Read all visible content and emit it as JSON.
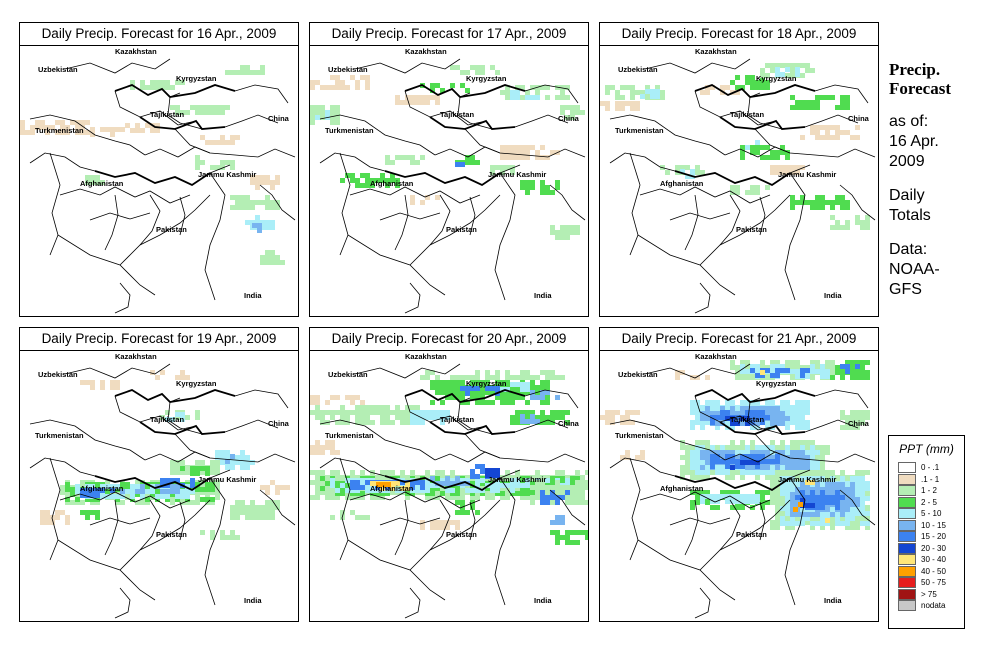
{
  "panels": [
    {
      "title": "Daily Precip. Forecast for  16 Apr., 2009",
      "day": 16
    },
    {
      "title": "Daily Precip. Forecast for  17 Apr., 2009",
      "day": 17
    },
    {
      "title": "Daily Precip. Forecast for  18 Apr., 2009",
      "day": 18
    },
    {
      "title": "Daily Precip. Forecast for  19 Apr., 2009",
      "day": 19
    },
    {
      "title": "Daily Precip. Forecast for  20 Apr., 2009",
      "day": 20
    },
    {
      "title": "Daily Precip. Forecast for  21 Apr., 2009",
      "day": 21
    }
  ],
  "map_labels": {
    "kazakhstan": "Kazakhstan",
    "uzbekistan": "Uzbekistan",
    "kyrgyzstan": "Kyrgyzstan",
    "tajikistan": "Tajikistan",
    "china": "China",
    "turkmenistan": "Turkmenistan",
    "jammu_kashmir": "Jammu Kashmir",
    "afghanistan": "Afghanistan",
    "pakistan": "Pakistan",
    "india": "India"
  },
  "sidebar": {
    "heading": "Precip.\nForecast",
    "asof": "as of:\n16 Apr.\n2009",
    "totals": "Daily\nTotals",
    "source": "Data:\nNOAA-\nGFS"
  },
  "legend": {
    "title": "PPT (mm)",
    "items": [
      {
        "label": "0 - .1",
        "color": "#ffffff"
      },
      {
        "label": ".1 - 1",
        "color": "#f0dcc0"
      },
      {
        "label": "1 - 2",
        "color": "#b4eeb4"
      },
      {
        "label": "2 - 5",
        "color": "#50dc50"
      },
      {
        "label": "5 - 10",
        "color": "#aaeef8"
      },
      {
        "label": "10 - 15",
        "color": "#78b4f0"
      },
      {
        "label": "15 - 20",
        "color": "#3c82f0"
      },
      {
        "label": "20 - 30",
        "color": "#1446d2"
      },
      {
        "label": "30 - 40",
        "color": "#ffe678"
      },
      {
        "label": "40 - 50",
        "color": "#ffa000"
      },
      {
        "label": "50 - 75",
        "color": "#e61e1e"
      },
      {
        "label": "> 75",
        "color": "#a01414"
      },
      {
        "label": "nodata",
        "color": "#c8c8c8"
      }
    ]
  }
}
